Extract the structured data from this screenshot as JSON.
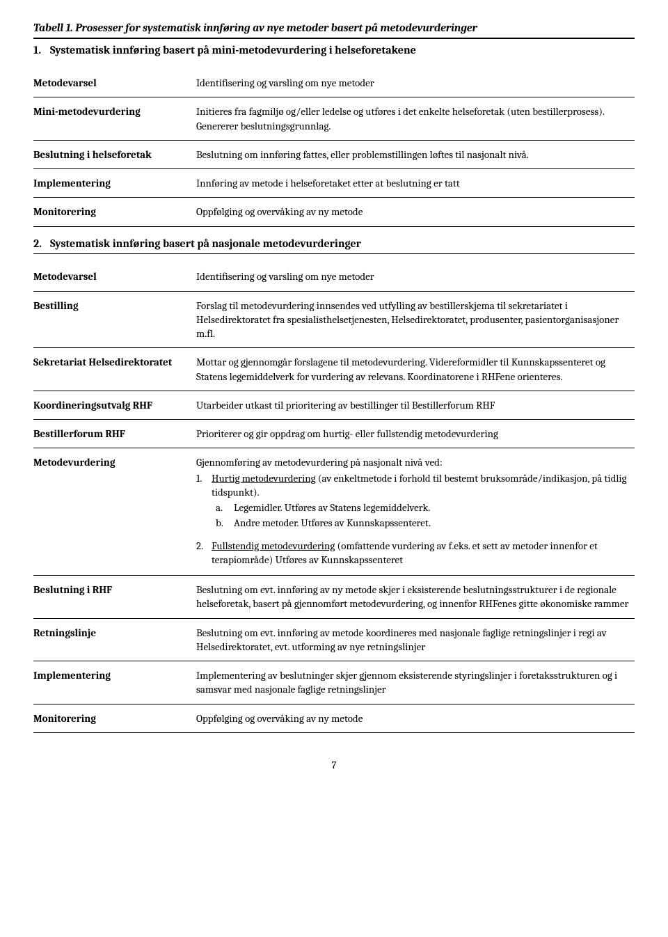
{
  "tableTitle": "Tabell 1.  Prosesser for systematisk innføring av nye metoder basert på metodevurderinger",
  "section1": {
    "num": "1.",
    "title": "Systematisk innføring basert på mini-metodevurdering i helseforetakene",
    "rows": [
      {
        "term": "Metodevarsel",
        "desc": "Identifisering og varsling om nye metoder"
      },
      {
        "term": "Mini-metodevurdering",
        "desc": "Initieres fra fagmiljø og/eller ledelse og utføres i det enkelte helseforetak (uten bestillerprosess). Genererer beslutningsgrunnlag."
      },
      {
        "term": "Beslutning i helseforetak",
        "desc": "Beslutning om innføring fattes, eller problemstillingen løftes til nasjonalt nivå."
      },
      {
        "term": "Implementering",
        "desc": "Innføring av metode i helseforetaket etter at beslutning er tatt"
      },
      {
        "term": "Monitorering",
        "desc": "Oppfølging og overvåking av ny metode"
      }
    ]
  },
  "section2": {
    "num": "2.",
    "title": "Systematisk innføring basert på nasjonale metodevurderinger",
    "rows": [
      {
        "term": "Metodevarsel",
        "desc": "Identifisering og varsling om nye metoder"
      },
      {
        "term": "Bestilling",
        "desc": "Forslag til metodevurdering innsendes ved utfylling av bestillerskjema til sekretariatet i Helsedirektoratet fra spesialisthelsetjenesten, Helsedirektoratet, produsenter, pasientorganisasjoner m.fl."
      },
      {
        "term": "Sekretariat Helsedirektoratet",
        "desc": "Mottar og gjennomgår forslagene til metodevurdering. Videreformidler til Kunnskapssenteret og Statens legemiddelverk for vurdering av relevans. Koordinatorene i RHFene orienteres."
      },
      {
        "term": "Koordineringsutvalg RHF",
        "desc": "Utarbeider utkast til prioritering av bestillinger til Bestillerforum RHF"
      },
      {
        "term": "Bestillerforum RHF",
        "desc": "Prioriterer og gir oppdrag om hurtig- eller fullstendig metodevurdering"
      }
    ],
    "metodevurdering": {
      "term": "Metodevurdering",
      "intro": "Gjennomføring av metodevurdering på nasjonalt nivå ved:",
      "item1_num": "1.",
      "item1_underline": "Hurtig metodevurdering",
      "item1_rest": " (av enkeltmetode i forhold til bestemt bruksområde/indikasjon, på tidlig tidspunkt).",
      "item1a_letter": "a.",
      "item1a_text": "Legemidler. Utføres av Statens legemiddelverk.",
      "item1b_letter": "b.",
      "item1b_text": "Andre metoder. Utføres av Kunnskapssenteret.",
      "item2_num": "2.",
      "item2_underline": "Fullstendig metodevurdering",
      "item2_rest": " (omfattende vurdering av f.eks. et sett av metoder innenfor et terapiområde) Utføres av Kunnskapssenteret"
    },
    "rowsAfter": [
      {
        "term": "Beslutning i RHF",
        "desc": "Beslutning om evt. innføring av ny metode skjer i eksisterende beslutningsstrukturer i de regionale helseforetak, basert på gjennomført metodevurdering, og innenfor RHFenes gitte økonomiske rammer"
      },
      {
        "term": "Retningslinje",
        "desc": "Beslutning om evt. innføring av metode koordineres med nasjonale faglige retningslinjer i regi av Helsedirektoratet, evt. utforming av nye retningslinjer"
      },
      {
        "term": "Implementering",
        "desc": "Implementering av beslutninger skjer gjennom eksisterende styringslinjer i foretaksstrukturen og i samsvar med nasjonale faglige retningslinjer"
      },
      {
        "term": "Monitorering",
        "desc": "Oppfølging og overvåking av ny metode"
      }
    ]
  },
  "pageNumber": "7"
}
